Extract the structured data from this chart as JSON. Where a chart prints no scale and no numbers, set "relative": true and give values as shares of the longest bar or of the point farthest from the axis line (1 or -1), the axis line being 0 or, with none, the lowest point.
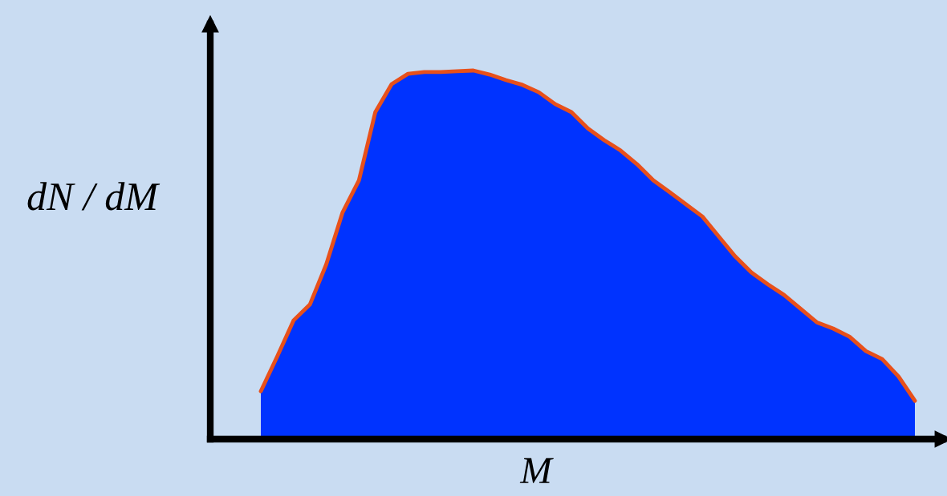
{
  "chart_data": {
    "type": "area",
    "relative": true,
    "xlabel": "M",
    "ylabel": "dN / dM",
    "categories": [
      null,
      null,
      null,
      null,
      null,
      null,
      null,
      null,
      null,
      null,
      null,
      null,
      null,
      null,
      null,
      null,
      null,
      null,
      null,
      null,
      null,
      null,
      null,
      null,
      null,
      null,
      null,
      null,
      null,
      null,
      null,
      null,
      null,
      null,
      null,
      null,
      null,
      null,
      null,
      null,
      null
    ],
    "series": [
      {
        "color": "#0033ff",
        "values": [
          0.13,
          0.224,
          0.322,
          0.365,
          0.474,
          0.615,
          0.702,
          0.887,
          0.963,
          0.991,
          0.996,
          0.996,
          0.998,
          1,
          0.989,
          0.974,
          0.961,
          0.941,
          0.909,
          0.887,
          0.843,
          0.811,
          0.783,
          0.746,
          0.702,
          0.67,
          0.637,
          0.604,
          0.55,
          0.496,
          0.452,
          0.42,
          0.391,
          0.354,
          0.317,
          0.3,
          0.278,
          0.239,
          0.217,
          0.17,
          0.104
        ]
      },
      {
        "type": "line",
        "color": "#e8501a",
        "values": [
          0.13,
          0.224,
          0.322,
          0.365,
          0.474,
          0.615,
          0.702,
          0.887,
          0.963,
          0.991,
          0.996,
          0.996,
          0.998,
          1,
          0.989,
          0.974,
          0.961,
          0.941,
          0.909,
          0.887,
          0.843,
          0.811,
          0.783,
          0.746,
          0.702,
          0.67,
          0.637,
          0.604,
          0.55,
          0.496,
          0.452,
          0.42,
          0.391,
          0.354,
          0.317,
          0.3,
          0.278,
          0.239,
          0.217,
          0.17,
          0.104
        ]
      }
    ]
  }
}
